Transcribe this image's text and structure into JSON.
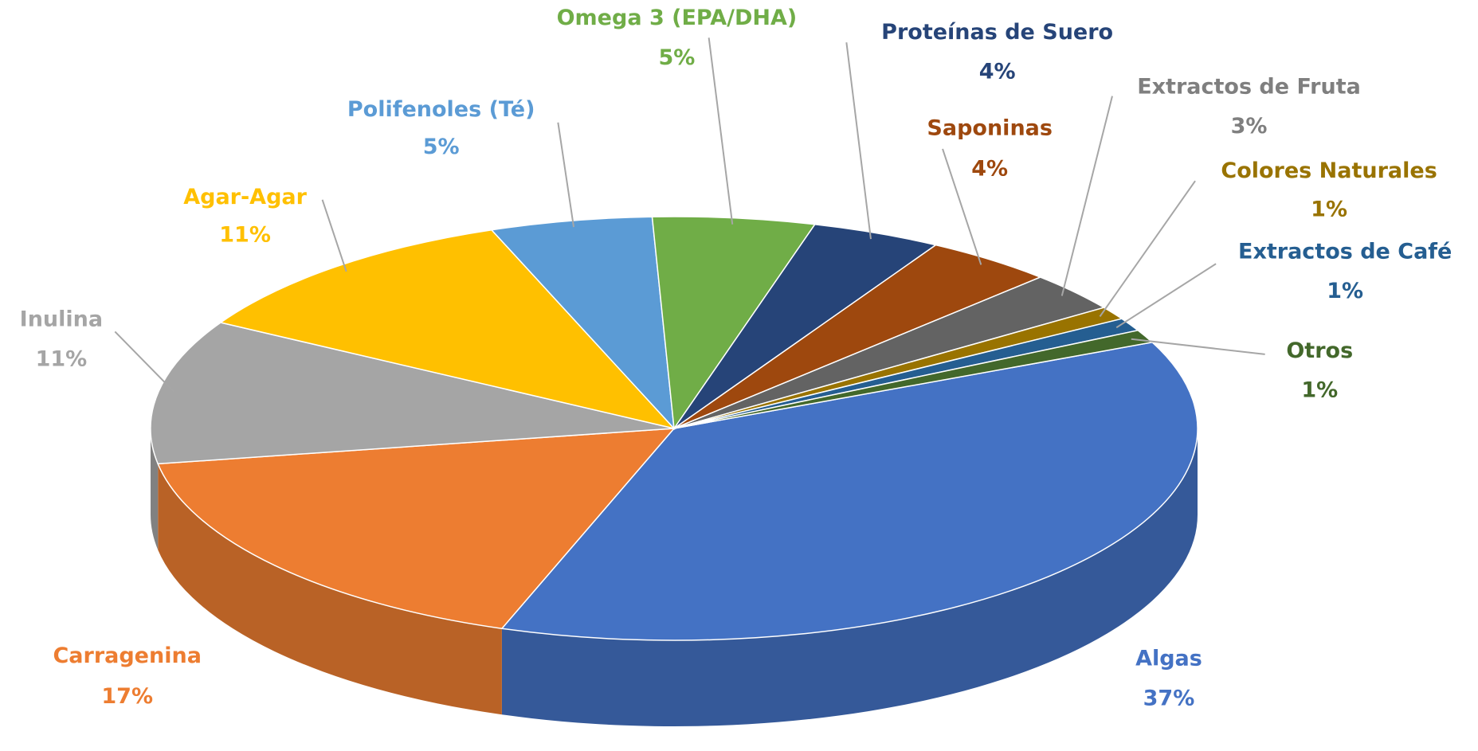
{
  "chart_data": {
    "type": "pie",
    "categories": [
      "Algas",
      "Carragenina",
      "Inulina",
      "Agar-Agar",
      "Polifenoles (Té)",
      "Omega 3 (EPA/DHA)",
      "Proteínas de Suero",
      "Saponinas",
      "Extractos de Fruta",
      "Colores Naturales",
      "Extractos de Café",
      "Otros"
    ],
    "values": [
      37,
      17,
      11,
      11,
      5,
      5,
      4,
      4,
      3,
      1,
      1,
      1
    ],
    "value_labels": [
      "37%",
      "17%",
      "11%",
      "11%",
      "5%",
      "5%",
      "4%",
      "4%",
      "3%",
      "1%",
      "1%",
      "1%"
    ],
    "colors": [
      "#4472c4",
      "#ed7d31",
      "#a5a5a5",
      "#ffc000",
      "#5b9bd5",
      "#70ad47",
      "#264478",
      "#9e480e",
      "#636363",
      "#997300",
      "#255e91",
      "#43682b"
    ]
  }
}
